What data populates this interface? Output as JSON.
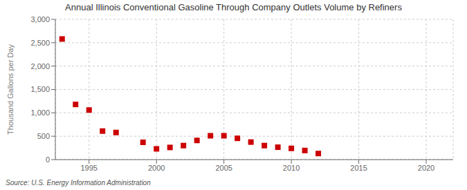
{
  "chart_data": {
    "type": "scatter",
    "title": "Annual Illinois Conventional Gasoline Through Company Outlets Volume by Refiners",
    "y_label": "Thousand Gallons per Day",
    "source": "Source: U.S. Energy Information Administration",
    "x": [
      1993,
      1994,
      1995,
      1996,
      1997,
      1999,
      2000,
      2001,
      2002,
      2003,
      2004,
      2005,
      2006,
      2007,
      2008,
      2009,
      2010,
      2011,
      2012
    ],
    "values": [
      2580,
      1180,
      1060,
      610,
      580,
      370,
      230,
      260,
      300,
      410,
      510,
      510,
      455,
      375,
      300,
      265,
      240,
      195,
      130
    ],
    "color": "#cc0000",
    "marker": "square",
    "xlim": [
      1992.5,
      2022
    ],
    "xticks": [
      1995,
      2000,
      2005,
      2010,
      2015,
      2020
    ],
    "ylim": [
      0,
      3000
    ],
    "yticks": [
      0,
      500,
      {
        "value": 1000,
        "label": "1,000"
      },
      {
        "value": 1500,
        "label": "1,500"
      },
      {
        "value": 2000,
        "label": "2,000"
      },
      {
        "value": 2500,
        "label": "2,500"
      },
      {
        "value": 3000,
        "label": "3,000"
      }
    ],
    "grid": true
  }
}
